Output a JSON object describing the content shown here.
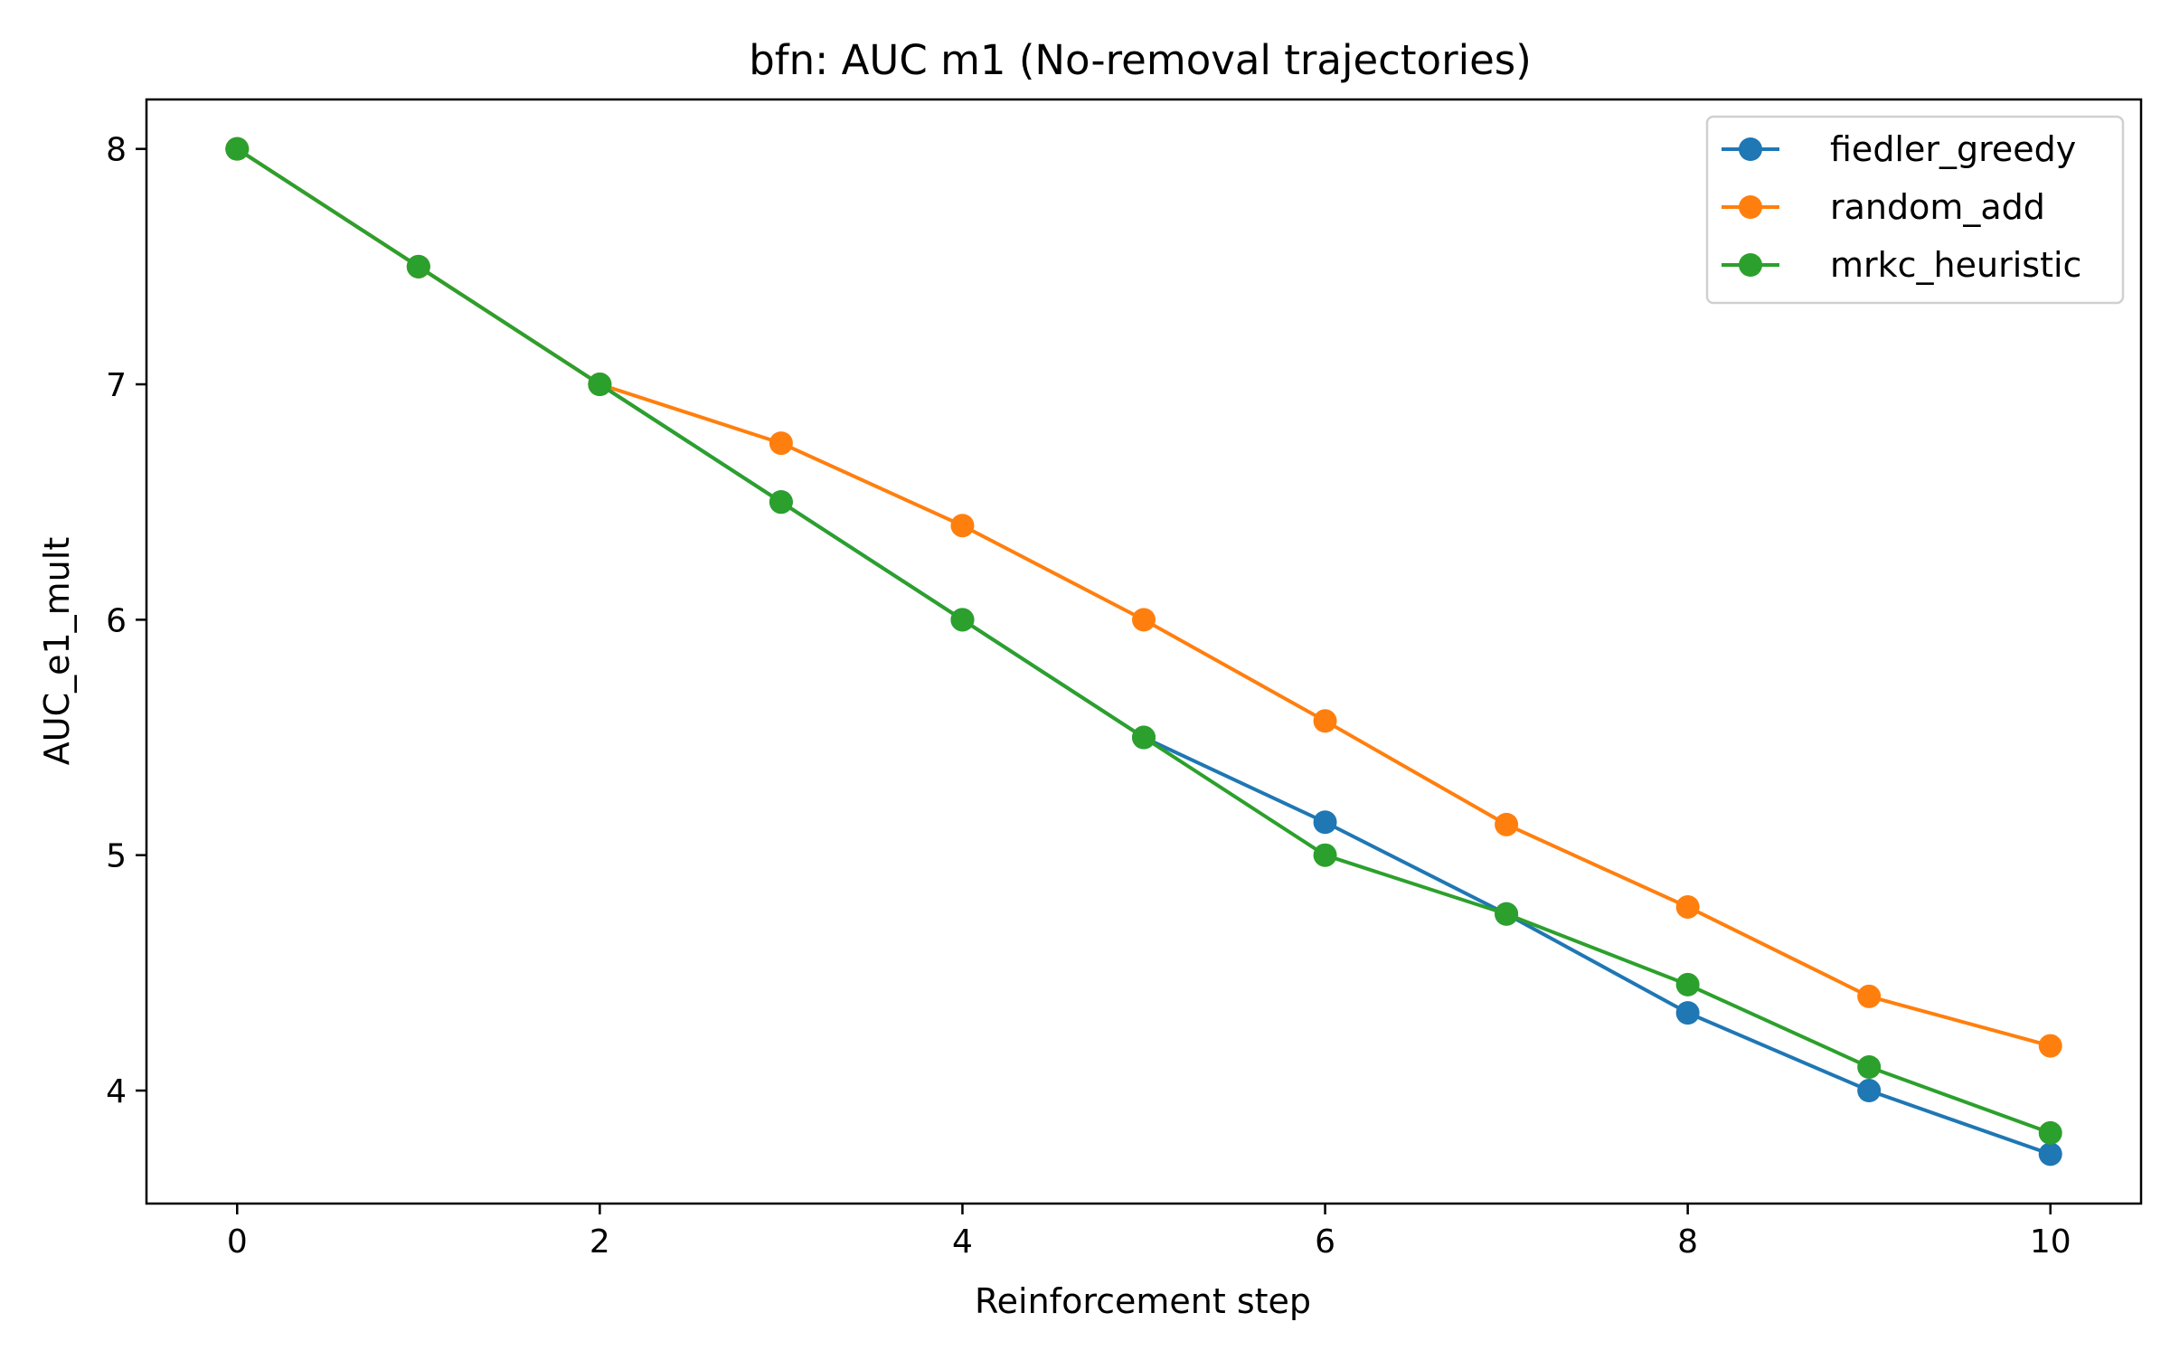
{
  "chart_data": {
    "type": "line",
    "title": "bfn: AUC m1 (No-removal trajectories)",
    "xlabel": "Reinforcement step",
    "ylabel": "AUC_e1_mult",
    "x": [
      0,
      1,
      2,
      3,
      4,
      5,
      6,
      7,
      8,
      9,
      10
    ],
    "xlim": [
      -0.5,
      10.5
    ],
    "ylim": [
      3.52,
      8.21
    ],
    "xticks": [
      0,
      2,
      4,
      6,
      8,
      10
    ],
    "yticks": [
      4,
      5,
      6,
      7,
      8
    ],
    "grid": false,
    "legend_position": "top-right",
    "series": [
      {
        "name": "fiedler_greedy",
        "color": "#1f77b4",
        "values": [
          8.0,
          7.5,
          7.0,
          6.5,
          6.0,
          5.5,
          5.14,
          4.75,
          4.33,
          4.0,
          3.73
        ]
      },
      {
        "name": "random_add",
        "color": "#ff7f0e",
        "values": [
          8.0,
          7.5,
          7.0,
          6.75,
          6.4,
          6.0,
          5.57,
          5.13,
          4.78,
          4.4,
          4.19
        ]
      },
      {
        "name": "mrkc_heuristic",
        "color": "#2ca02c",
        "values": [
          8.0,
          7.5,
          7.0,
          6.5,
          6.0,
          5.5,
          5.0,
          4.75,
          4.45,
          4.1,
          3.82
        ]
      }
    ]
  }
}
